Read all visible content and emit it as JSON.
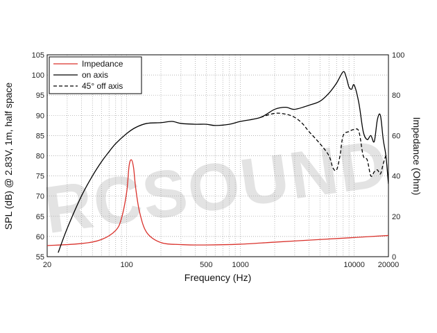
{
  "chart_data": {
    "type": "line",
    "xlabel": "Frequency (Hz)",
    "ylabel": "SPL (dB) @ 2.83V, 1m, half space",
    "y2label": "Impedance (Ohm)",
    "x_scale": "log",
    "xlim": [
      20,
      20000
    ],
    "ylim": [
      55,
      105
    ],
    "y2lim": [
      0,
      100
    ],
    "grid": true,
    "legend_position": "top-left",
    "x_ticks": [
      "20",
      "100",
      "500",
      "1000",
      "10000",
      "20000"
    ],
    "y_ticks": [
      "55",
      "60",
      "65",
      "70",
      "75",
      "80",
      "85",
      "90",
      "95",
      "100",
      "105"
    ],
    "y2_ticks": [
      "0",
      "20",
      "40",
      "60",
      "80",
      "100"
    ],
    "watermark": "RCSOUND",
    "series": [
      {
        "name": "Impedance",
        "axis": "right",
        "color": "#d9312b",
        "dash": "solid",
        "x": [
          20,
          40,
          60,
          80,
          90,
          100,
          105,
          110,
          115,
          120,
          130,
          150,
          200,
          300,
          500,
          1000,
          2000,
          5000,
          10000,
          20000
        ],
        "y": [
          5.5,
          6.5,
          8.5,
          13,
          19,
          32,
          45,
          48,
          44,
          34,
          22,
          12,
          7,
          6,
          5.8,
          6.2,
          7.2,
          8.5,
          9.5,
          10.5
        ]
      },
      {
        "name": "on axis",
        "axis": "left",
        "color": "#000000",
        "dash": "solid",
        "x": [
          25,
          30,
          40,
          50,
          60,
          70,
          80,
          100,
          120,
          150,
          200,
          250,
          300,
          400,
          500,
          600,
          800,
          1000,
          1500,
          2000,
          2500,
          3000,
          4000,
          5000,
          6000,
          7000,
          8000,
          8500,
          9000,
          9500,
          10000,
          11000,
          12000,
          13000,
          14000,
          15000,
          16000,
          17000,
          18000,
          19000,
          20000
        ],
        "y": [
          56,
          62,
          70,
          75,
          78.5,
          81,
          83,
          85.5,
          87,
          88,
          88.2,
          88.5,
          88,
          87.8,
          87.8,
          87.5,
          87.8,
          88.5,
          89.5,
          91.5,
          92,
          91.5,
          92.5,
          93.5,
          95.5,
          98,
          100.8,
          99.5,
          97,
          96.5,
          97.5,
          93,
          86,
          84,
          85,
          83.5,
          89,
          90,
          84,
          80,
          73
        ]
      },
      {
        "name": "45° off axis",
        "axis": "left",
        "color": "#000000",
        "dash": "dashed",
        "x": [
          1500,
          2000,
          2500,
          3000,
          3500,
          4000,
          5000,
          6000,
          6500,
          7000,
          7500,
          8000,
          9000,
          10000,
          11000,
          12000,
          13000,
          14000,
          15000,
          16000,
          17000,
          18000,
          19000,
          20000
        ],
        "y": [
          89.5,
          90.5,
          90.3,
          89.5,
          88,
          86,
          83,
          80,
          77,
          76.5,
          80,
          85,
          86,
          86.5,
          86,
          80,
          79,
          75,
          76,
          76.5,
          75.5,
          78,
          80,
          80
        ]
      }
    ]
  }
}
